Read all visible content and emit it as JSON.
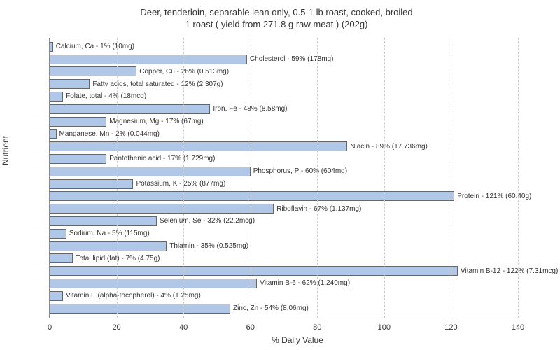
{
  "chart": {
    "type": "bar-horizontal",
    "title_line1": "Deer, tenderloin, separable lean only, 0.5-1 lb roast, cooked, broiled",
    "title_line2": "1 roast ( yield from 271.8 g raw meat ) (202g)",
    "ylabel": "Nutrient",
    "xlabel": "% Daily Value",
    "xlim_max": 140,
    "xtick_step": 20,
    "xticks": [
      0,
      20,
      40,
      60,
      80,
      100,
      120,
      140
    ],
    "bar_color": "#b1c7e8",
    "bar_border_color": "#666666",
    "grid_color": "#cccccc",
    "background_color": "#ffffff",
    "text_color": "#333333",
    "title_fontsize": 13,
    "label_fontsize": 12,
    "tick_fontsize": 11,
    "barlabel_fontsize": 10,
    "bars": [
      {
        "label": "Calcium, Ca - 1% (10mg)",
        "value": 1
      },
      {
        "label": "Cholesterol - 59% (178mg)",
        "value": 59
      },
      {
        "label": "Copper, Cu - 26% (0.513mg)",
        "value": 26
      },
      {
        "label": "Fatty acids, total saturated - 12% (2.307g)",
        "value": 12
      },
      {
        "label": "Folate, total - 4% (18mcg)",
        "value": 4
      },
      {
        "label": "Iron, Fe - 48% (8.58mg)",
        "value": 48
      },
      {
        "label": "Magnesium, Mg - 17% (67mg)",
        "value": 17
      },
      {
        "label": "Manganese, Mn - 2% (0.044mg)",
        "value": 2
      },
      {
        "label": "Niacin - 89% (17.736mg)",
        "value": 89
      },
      {
        "label": "Pantothenic acid - 17% (1.729mg)",
        "value": 17
      },
      {
        "label": "Phosphorus, P - 60% (604mg)",
        "value": 60
      },
      {
        "label": "Potassium, K - 25% (877mg)",
        "value": 25
      },
      {
        "label": "Protein - 121% (60.40g)",
        "value": 121
      },
      {
        "label": "Riboflavin - 67% (1.137mg)",
        "value": 67
      },
      {
        "label": "Selenium, Se - 32% (22.2mcg)",
        "value": 32
      },
      {
        "label": "Sodium, Na - 5% (115mg)",
        "value": 5
      },
      {
        "label": "Thiamin - 35% (0.525mg)",
        "value": 35
      },
      {
        "label": "Total lipid (fat) - 7% (4.75g)",
        "value": 7
      },
      {
        "label": "Vitamin B-12 - 122% (7.31mcg)",
        "value": 122
      },
      {
        "label": "Vitamin B-6 - 62% (1.240mg)",
        "value": 62
      },
      {
        "label": "Vitamin E (alpha-tocopherol) - 4% (1.25mg)",
        "value": 4
      },
      {
        "label": "Zinc, Zn - 54% (8.06mg)",
        "value": 54
      }
    ]
  }
}
